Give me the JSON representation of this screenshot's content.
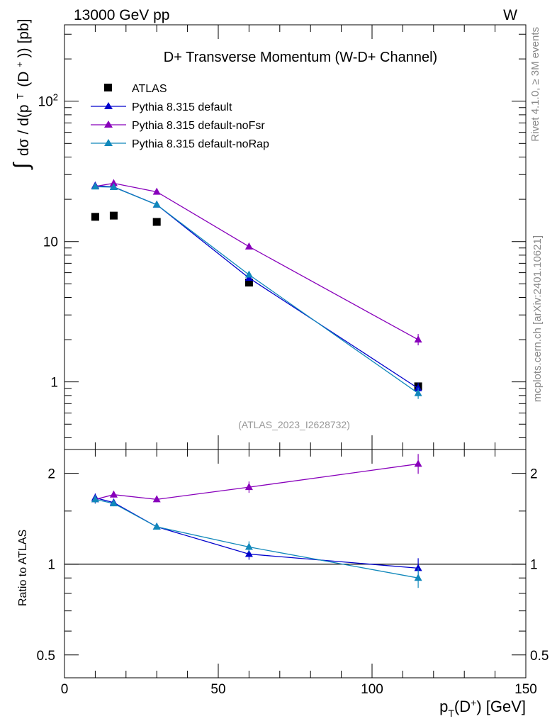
{
  "header": {
    "energy_label": "13000 GeV pp",
    "process_label": "W"
  },
  "side_text": {
    "rivet": "Rivet 4.1.0, ≥ 3M events",
    "source": "mcplots.cern.ch [arXiv:2401.10621]"
  },
  "chart_data": [
    {
      "type": "line",
      "title": "D+ Transverse Momentum (W-D+ Channel)",
      "analysis_label": "(ATLAS_2023_I2628732)",
      "xlabel": "p_T(D+) [GeV]",
      "ylabel": "∫ dσ / d(p_T (D+)) [pb]",
      "yscale": "log",
      "xlim": [
        0,
        150
      ],
      "ylim": [
        0.33,
        350
      ],
      "x_ticks": [
        0,
        50,
        100,
        150
      ],
      "y_tick_labels": [
        "1",
        "10",
        "10^2"
      ],
      "legend_position": "top-left",
      "series": [
        {
          "name": "ATLAS",
          "color": "#000000",
          "marker": "square",
          "x": [
            10,
            16,
            30,
            60,
            115
          ],
          "values": [
            15,
            15.3,
            13.8,
            5.1,
            0.93
          ]
        },
        {
          "name": "Pythia 8.315 default",
          "color": "#0000cc",
          "marker": "triangle",
          "x": [
            10,
            16,
            30,
            60,
            115
          ],
          "values": [
            25,
            24.5,
            18.3,
            5.5,
            0.9
          ]
        },
        {
          "name": "Pythia 8.315 default-noFsr",
          "color": "#8800bb",
          "marker": "triangle",
          "x": [
            10,
            16,
            30,
            60,
            115
          ],
          "values": [
            24.7,
            26,
            22.6,
            9.2,
            2.0
          ]
        },
        {
          "name": "Pythia 8.315 default-noRap",
          "color": "#1188bb",
          "marker": "triangle",
          "x": [
            10,
            16,
            30,
            60,
            115
          ],
          "values": [
            24.6,
            24.4,
            18.3,
            5.8,
            0.83
          ]
        }
      ]
    },
    {
      "type": "line",
      "title": "",
      "xlabel": "p_T(D+) [GeV]",
      "ylabel": "Ratio to ATLAS",
      "yscale": "log",
      "xlim": [
        0,
        150
      ],
      "ylim": [
        0.42,
        2.4
      ],
      "x_ticks": [
        0,
        50,
        100,
        150
      ],
      "y_ticks": [
        0.5,
        1,
        2
      ],
      "y_tick_labels": [
        "0.5",
        "1",
        "2"
      ],
      "reference_line": 1,
      "series": [
        {
          "name": "Pythia 8.315 default",
          "color": "#0000cc",
          "x": [
            10,
            16,
            30,
            60,
            115
          ],
          "values": [
            1.66,
            1.6,
            1.33,
            1.08,
            0.97
          ]
        },
        {
          "name": "Pythia 8.315 default-noFsr",
          "color": "#8800bb",
          "x": [
            10,
            16,
            30,
            60,
            115
          ],
          "values": [
            1.64,
            1.7,
            1.64,
            1.8,
            2.15
          ]
        },
        {
          "name": "Pythia 8.315 default-noRap",
          "color": "#1188bb",
          "x": [
            10,
            16,
            30,
            60,
            115
          ],
          "values": [
            1.64,
            1.59,
            1.33,
            1.14,
            0.9
          ]
        }
      ]
    }
  ]
}
